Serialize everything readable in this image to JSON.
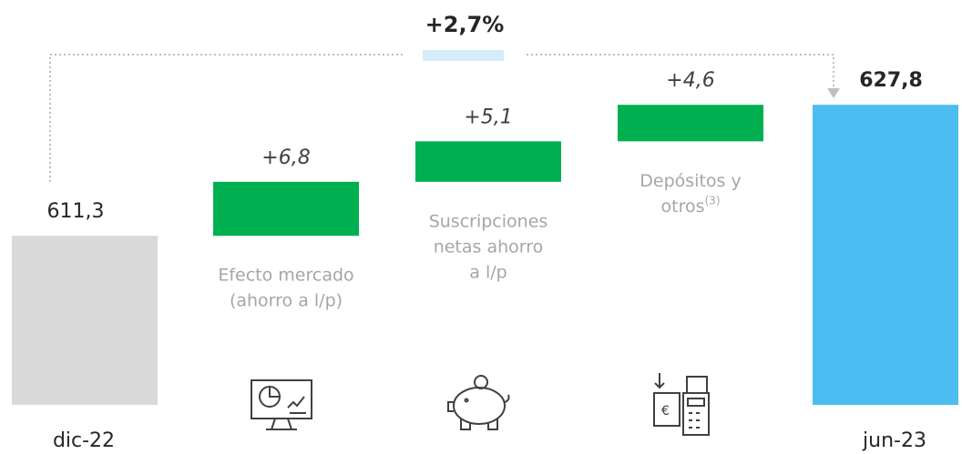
{
  "chart_data": {
    "type": "waterfall",
    "categories": [
      [
        "dic-22"
      ],
      [
        "Efecto mercado",
        "(ahorro a l/p)"
      ],
      [
        "Suscripciones",
        "netas ahorro",
        "a l/p"
      ],
      [
        "Depósitos y",
        "otros"
      ],
      [
        "jun-23"
      ]
    ],
    "footnotes": [
      null,
      null,
      null,
      "(3)",
      null
    ],
    "values": [
      611.3,
      6.8,
      5.1,
      4.6,
      627.8
    ],
    "value_labels": [
      "611,3",
      "+6,8",
      "+5,1",
      "+4,6",
      "627,8"
    ],
    "colors": [
      "#d9d9d9",
      "#00b050",
      "#00b050",
      "#00b050",
      "#4bbdf0"
    ],
    "ylim": [
      590,
      630
    ],
    "annotation": "+2,7%"
  }
}
